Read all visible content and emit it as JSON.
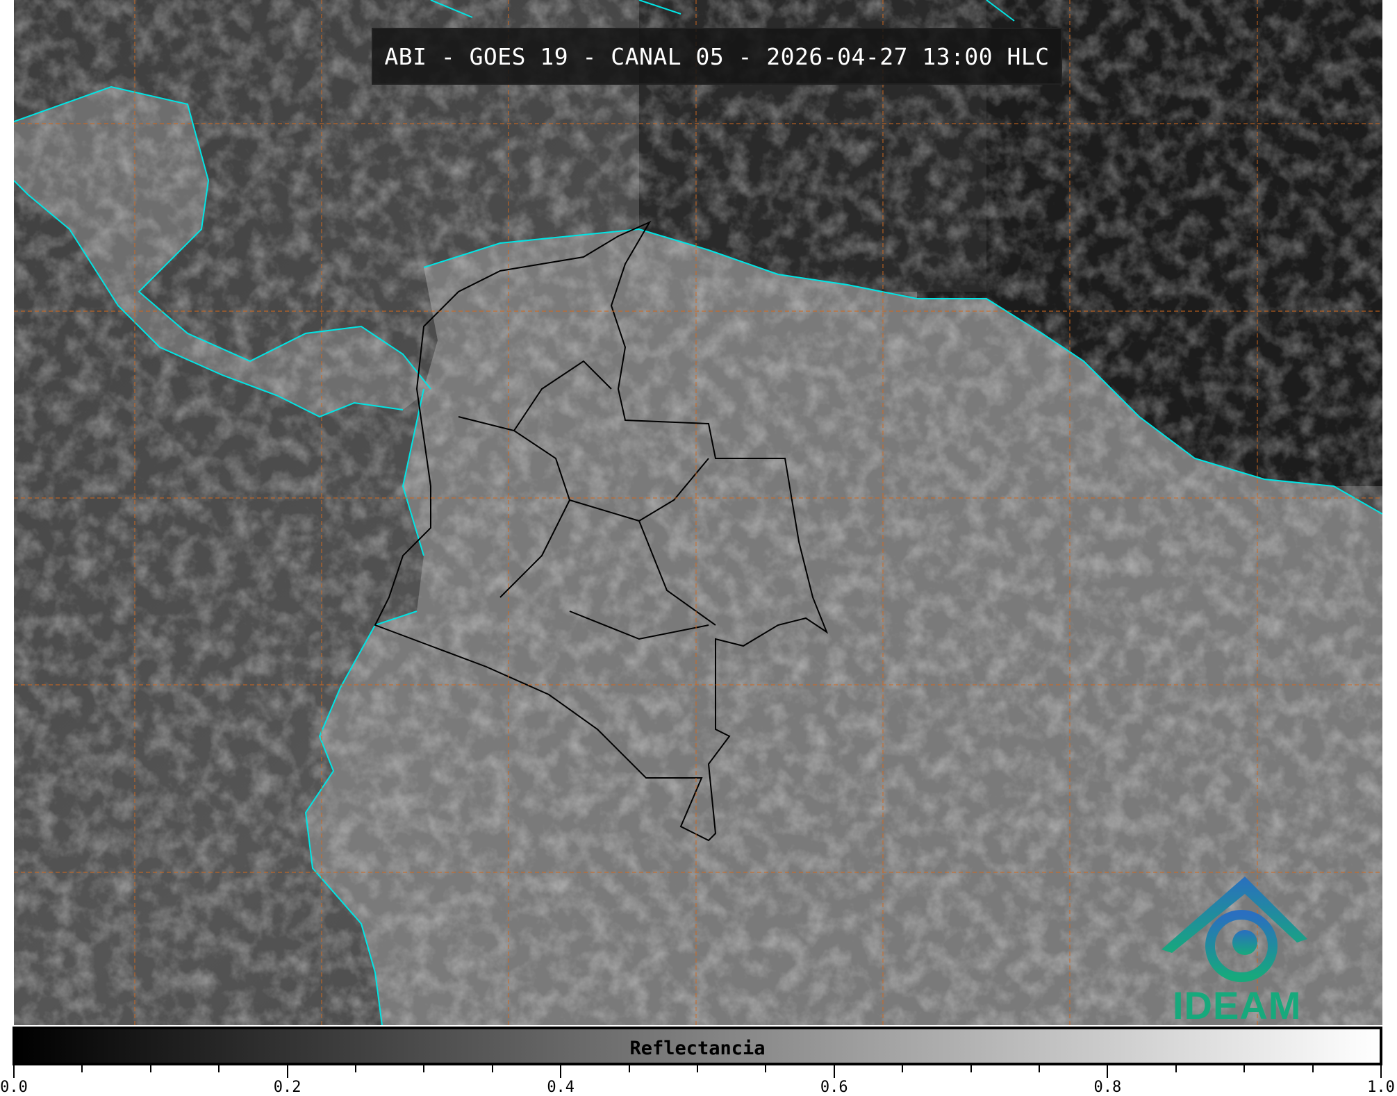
{
  "title": "ABI - GOES 19 - CANAL 05 - 2026-04-27 13:00 HLC",
  "colorbar": {
    "label": "Reflectancia",
    "range": [
      0.0,
      1.0
    ],
    "colormap": "grayscale",
    "tick_labels": [
      "0.0",
      "0.2",
      "0.4",
      "0.6",
      "0.8",
      "1.0"
    ]
  },
  "logo": {
    "text": "IDEAM",
    "color": "#17a97c"
  },
  "map": {
    "coastline_color": "#00e5e5",
    "border_color": "#000000",
    "gridline_color": "#d2691e"
  }
}
